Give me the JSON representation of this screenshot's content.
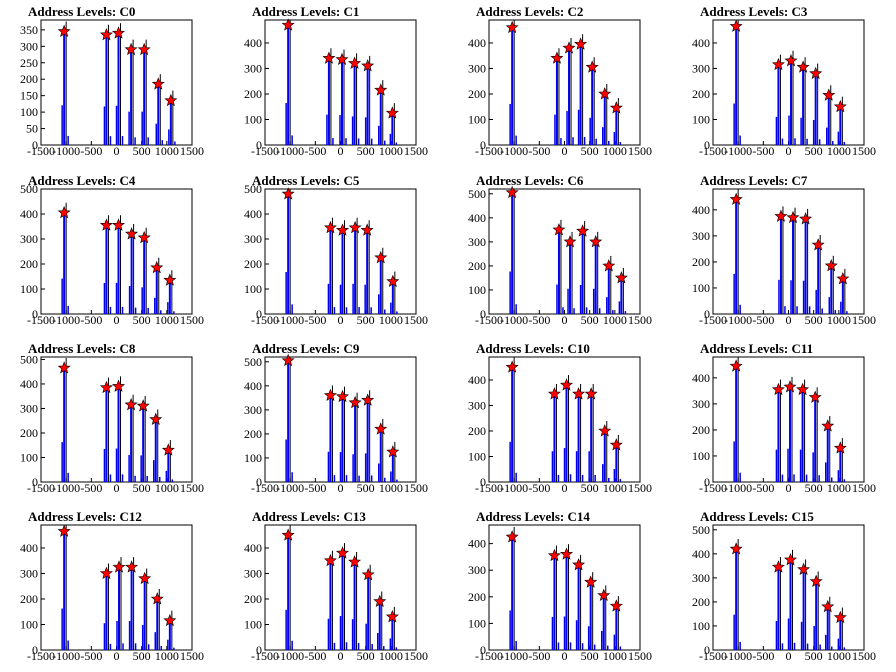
{
  "colors": {
    "histogram": "#0000ee",
    "marker": "#ff0000",
    "marker_edge": "#000000",
    "frame": "#000000"
  },
  "chart_data": [
    {
      "type": "bar",
      "title": "Address Levels: C0",
      "xlim": [
        -1500,
        1500
      ],
      "ylim": [
        0,
        380
      ],
      "xticks": [
        "-1500",
        "-1000",
        "-500",
        "0",
        "500",
        "1000",
        "1500"
      ],
      "yticks": [
        "0",
        "50",
        "100",
        "150",
        "200",
        "250",
        "300",
        "350"
      ],
      "peaks": [
        {
          "x": -1040,
          "y": 345
        },
        {
          "x": -200,
          "y": 335
        },
        {
          "x": 40,
          "y": 340
        },
        {
          "x": 290,
          "y": 290
        },
        {
          "x": 550,
          "y": 290
        },
        {
          "x": 830,
          "y": 185
        },
        {
          "x": 1080,
          "y": 135
        }
      ]
    },
    {
      "type": "bar",
      "title": "Address Levels: C1",
      "xlim": [
        -1500,
        1500
      ],
      "ylim": [
        0,
        490
      ],
      "xticks": [
        "-1500",
        "-1000",
        "-500",
        "0",
        "500",
        "1000",
        "1500"
      ],
      "yticks": [
        "0",
        "100",
        "200",
        "300",
        "400"
      ],
      "peaks": [
        {
          "x": -1040,
          "y": 470
        },
        {
          "x": -230,
          "y": 340
        },
        {
          "x": 30,
          "y": 335
        },
        {
          "x": 280,
          "y": 320
        },
        {
          "x": 540,
          "y": 310
        },
        {
          "x": 800,
          "y": 215
        },
        {
          "x": 1030,
          "y": 125
        }
      ]
    },
    {
      "type": "bar",
      "title": "Address Levels: C2",
      "xlim": [
        -1500,
        1500
      ],
      "ylim": [
        0,
        490
      ],
      "xticks": [
        "-1500",
        "-1000",
        "-500",
        "0",
        "500",
        "1000",
        "1500"
      ],
      "yticks": [
        "0",
        "100",
        "200",
        "300",
        "400"
      ],
      "peaks": [
        {
          "x": -1040,
          "y": 460
        },
        {
          "x": -150,
          "y": 340
        },
        {
          "x": 90,
          "y": 380
        },
        {
          "x": 320,
          "y": 395
        },
        {
          "x": 550,
          "y": 305
        },
        {
          "x": 800,
          "y": 200
        },
        {
          "x": 1030,
          "y": 145
        }
      ]
    },
    {
      "type": "bar",
      "title": "Address Levels: C3",
      "xlim": [
        -1500,
        1500
      ],
      "ylim": [
        0,
        490
      ],
      "xticks": [
        "-1500",
        "-1000",
        "-500",
        "0",
        "500",
        "1000",
        "1500"
      ],
      "yticks": [
        "0",
        "100",
        "200",
        "300",
        "400"
      ],
      "peaks": [
        {
          "x": -1040,
          "y": 465
        },
        {
          "x": -200,
          "y": 315
        },
        {
          "x": 50,
          "y": 330
        },
        {
          "x": 290,
          "y": 305
        },
        {
          "x": 540,
          "y": 280
        },
        {
          "x": 800,
          "y": 195
        },
        {
          "x": 1030,
          "y": 150
        }
      ]
    },
    {
      "type": "bar",
      "title": "Address Levels: C4",
      "xlim": [
        -1500,
        1500
      ],
      "ylim": [
        0,
        500
      ],
      "xticks": [
        "-1500",
        "-1000",
        "-500",
        "0",
        "500",
        "1000",
        "1500"
      ],
      "yticks": [
        "0",
        "100",
        "200",
        "300",
        "400",
        "500"
      ],
      "peaks": [
        {
          "x": -1040,
          "y": 405
        },
        {
          "x": -200,
          "y": 355
        },
        {
          "x": 40,
          "y": 355
        },
        {
          "x": 300,
          "y": 320
        },
        {
          "x": 550,
          "y": 305
        },
        {
          "x": 800,
          "y": 185
        },
        {
          "x": 1060,
          "y": 135
        }
      ]
    },
    {
      "type": "bar",
      "title": "Address Levels: C5",
      "xlim": [
        -1500,
        1500
      ],
      "ylim": [
        0,
        500
      ],
      "xticks": [
        "-1500",
        "-1000",
        "-500",
        "0",
        "500",
        "1000",
        "1500"
      ],
      "yticks": [
        "0",
        "100",
        "200",
        "300",
        "400",
        "500"
      ],
      "peaks": [
        {
          "x": -1040,
          "y": 480
        },
        {
          "x": -200,
          "y": 345
        },
        {
          "x": 40,
          "y": 335
        },
        {
          "x": 290,
          "y": 345
        },
        {
          "x": 530,
          "y": 335
        },
        {
          "x": 800,
          "y": 225
        },
        {
          "x": 1040,
          "y": 130
        }
      ]
    },
    {
      "type": "bar",
      "title": "Address Levels: C6",
      "xlim": [
        -1500,
        1500
      ],
      "ylim": [
        0,
        520
      ],
      "xticks": [
        "-1500",
        "-1000",
        "-500",
        "0",
        "500",
        "1000",
        "1500"
      ],
      "yticks": [
        "0",
        "100",
        "200",
        "300",
        "400",
        "500"
      ],
      "peaks": [
        {
          "x": -1040,
          "y": 505
        },
        {
          "x": -110,
          "y": 350
        },
        {
          "x": 110,
          "y": 300
        },
        {
          "x": 360,
          "y": 345
        },
        {
          "x": 620,
          "y": 300
        },
        {
          "x": 880,
          "y": 200
        },
        {
          "x": 1130,
          "y": 150
        }
      ]
    },
    {
      "type": "bar",
      "title": "Address Levels: C7",
      "xlim": [
        -1500,
        1500
      ],
      "ylim": [
        0,
        480
      ],
      "xticks": [
        "-1500",
        "-1000",
        "-500",
        "0",
        "500",
        "1000",
        "1500"
      ],
      "yticks": [
        "0",
        "100",
        "200",
        "300",
        "400"
      ],
      "peaks": [
        {
          "x": -1040,
          "y": 440
        },
        {
          "x": -150,
          "y": 375
        },
        {
          "x": 90,
          "y": 370
        },
        {
          "x": 340,
          "y": 365
        },
        {
          "x": 590,
          "y": 265
        },
        {
          "x": 850,
          "y": 185
        },
        {
          "x": 1080,
          "y": 135
        }
      ]
    },
    {
      "type": "bar",
      "title": "Address Levels: C8",
      "xlim": [
        -1500,
        1500
      ],
      "ylim": [
        0,
        510
      ],
      "xticks": [
        "-1500",
        "-1000",
        "-500",
        "0",
        "500",
        "1000",
        "1500"
      ],
      "yticks": [
        "0",
        "100",
        "200",
        "300",
        "400",
        "500"
      ],
      "peaks": [
        {
          "x": -1040,
          "y": 465
        },
        {
          "x": -200,
          "y": 385
        },
        {
          "x": 40,
          "y": 390
        },
        {
          "x": 290,
          "y": 315
        },
        {
          "x": 530,
          "y": 310
        },
        {
          "x": 780,
          "y": 255
        },
        {
          "x": 1030,
          "y": 130
        }
      ]
    },
    {
      "type": "bar",
      "title": "Address Levels: C9",
      "xlim": [
        -1500,
        1500
      ],
      "ylim": [
        0,
        520
      ],
      "xticks": [
        "-1500",
        "-1000",
        "-500",
        "0",
        "500",
        "1000",
        "1500"
      ],
      "yticks": [
        "0",
        "100",
        "200",
        "300",
        "400",
        "500"
      ],
      "peaks": [
        {
          "x": -1040,
          "y": 505
        },
        {
          "x": -200,
          "y": 360
        },
        {
          "x": 40,
          "y": 355
        },
        {
          "x": 290,
          "y": 330
        },
        {
          "x": 540,
          "y": 340
        },
        {
          "x": 800,
          "y": 220
        },
        {
          "x": 1040,
          "y": 125
        }
      ]
    },
    {
      "type": "bar",
      "title": "Address Levels: C10",
      "xlim": [
        -1500,
        1500
      ],
      "ylim": [
        0,
        490
      ],
      "xticks": [
        "-1500",
        "-1000",
        "-500",
        "0",
        "500",
        "1000",
        "1500"
      ],
      "yticks": [
        "0",
        "100",
        "200",
        "300",
        "400"
      ],
      "peaks": [
        {
          "x": -1040,
          "y": 450
        },
        {
          "x": -200,
          "y": 345
        },
        {
          "x": 40,
          "y": 380
        },
        {
          "x": 280,
          "y": 345
        },
        {
          "x": 530,
          "y": 345
        },
        {
          "x": 800,
          "y": 200
        },
        {
          "x": 1030,
          "y": 145
        }
      ]
    },
    {
      "type": "bar",
      "title": "Address Levels: C11",
      "xlim": [
        -1500,
        1500
      ],
      "ylim": [
        0,
        480
      ],
      "xticks": [
        "-1500",
        "-1000",
        "-500",
        "0",
        "500",
        "1000",
        "1500"
      ],
      "yticks": [
        "0",
        "100",
        "200",
        "300",
        "400"
      ],
      "peaks": [
        {
          "x": -1040,
          "y": 445
        },
        {
          "x": -200,
          "y": 355
        },
        {
          "x": 30,
          "y": 365
        },
        {
          "x": 280,
          "y": 355
        },
        {
          "x": 530,
          "y": 325
        },
        {
          "x": 780,
          "y": 215
        },
        {
          "x": 1030,
          "y": 130
        }
      ]
    },
    {
      "type": "bar",
      "title": "Address Levels: C12",
      "xlim": [
        -1500,
        1500
      ],
      "ylim": [
        0,
        490
      ],
      "xticks": [
        "-1500",
        "-1000",
        "-500",
        "0",
        "500",
        "1000",
        "1500"
      ],
      "yticks": [
        "0",
        "100",
        "200",
        "300",
        "400"
      ],
      "peaks": [
        {
          "x": -1040,
          "y": 465
        },
        {
          "x": -200,
          "y": 300
        },
        {
          "x": 50,
          "y": 325
        },
        {
          "x": 300,
          "y": 325
        },
        {
          "x": 560,
          "y": 280
        },
        {
          "x": 810,
          "y": 200
        },
        {
          "x": 1060,
          "y": 115
        }
      ]
    },
    {
      "type": "bar",
      "title": "Address Levels: C13",
      "xlim": [
        -1500,
        1500
      ],
      "ylim": [
        0,
        490
      ],
      "xticks": [
        "-1500",
        "-1000",
        "-500",
        "0",
        "500",
        "1000",
        "1500"
      ],
      "yticks": [
        "0",
        "100",
        "200",
        "300",
        "400"
      ],
      "peaks": [
        {
          "x": -1040,
          "y": 450
        },
        {
          "x": -200,
          "y": 350
        },
        {
          "x": 40,
          "y": 380
        },
        {
          "x": 280,
          "y": 345
        },
        {
          "x": 550,
          "y": 295
        },
        {
          "x": 780,
          "y": 190
        },
        {
          "x": 1030,
          "y": 130
        }
      ]
    },
    {
      "type": "bar",
      "title": "Address Levels: C14",
      "xlim": [
        -1500,
        1500
      ],
      "ylim": [
        0,
        470
      ],
      "xticks": [
        "-1500",
        "-1000",
        "-500",
        "0",
        "500",
        "1000",
        "1500"
      ],
      "yticks": [
        "0",
        "100",
        "200",
        "300",
        "400"
      ],
      "peaks": [
        {
          "x": -1040,
          "y": 425
        },
        {
          "x": -200,
          "y": 355
        },
        {
          "x": 40,
          "y": 360
        },
        {
          "x": 280,
          "y": 320
        },
        {
          "x": 520,
          "y": 255
        },
        {
          "x": 780,
          "y": 205
        },
        {
          "x": 1030,
          "y": 165
        }
      ]
    },
    {
      "type": "bar",
      "title": "Address Levels: C15",
      "xlim": [
        -1500,
        1500
      ],
      "ylim": [
        0,
        520
      ],
      "xticks": [
        "-1500",
        "-1000",
        "-500",
        "0",
        "500",
        "1000",
        "1500"
      ],
      "yticks": [
        "0",
        "100",
        "200",
        "300",
        "400",
        "500"
      ],
      "peaks": [
        {
          "x": -1040,
          "y": 420
        },
        {
          "x": -200,
          "y": 345
        },
        {
          "x": 40,
          "y": 375
        },
        {
          "x": 300,
          "y": 335
        },
        {
          "x": 550,
          "y": 285
        },
        {
          "x": 780,
          "y": 180
        },
        {
          "x": 1030,
          "y": 135
        }
      ]
    }
  ]
}
